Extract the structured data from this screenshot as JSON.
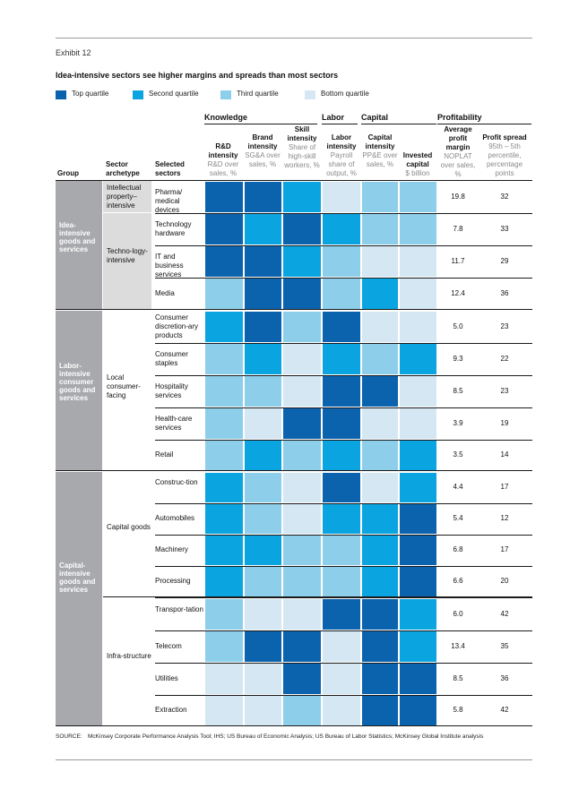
{
  "exhibit": "Exhibit 12",
  "title": "Idea-intensive sectors see higher margins and spreads than most sectors",
  "legend": [
    {
      "label": "Top quartile",
      "color": "#0b62ad"
    },
    {
      "label": "Second quartile",
      "color": "#0aa5e0"
    },
    {
      "label": "Third quartile",
      "color": "#8dcfea"
    },
    {
      "label": "Bottom quartile",
      "color": "#d4e7f2"
    }
  ],
  "column_groups": {
    "knowledge": "Knowledge",
    "labor": "Labor",
    "capital": "Capital",
    "profitability": "Profitability"
  },
  "left_headers": {
    "group": "Group",
    "archetype": "Sector archetype",
    "sectors": "Selected sectors"
  },
  "columns": [
    {
      "title": "R&D intensity",
      "sub": "R&D over sales, %"
    },
    {
      "title": "Brand intensity",
      "sub": "SG&A over sales, %"
    },
    {
      "title": "Skill intensity",
      "sub": "Share of high-skill workers, %"
    },
    {
      "title": "Labor intensity",
      "sub": "Payroll share of output, %"
    },
    {
      "title": "Capital intensity",
      "sub": "PP&E over sales, %"
    },
    {
      "title": "Invested capital",
      "sub": "$ billion"
    },
    {
      "title": "Average profit margin",
      "sub": "NOPLAT over sales, %"
    },
    {
      "title": "Profit spread",
      "sub": "95th – 5th percentile, percentage points"
    }
  ],
  "groups": [
    {
      "name": "Idea-intensive goods and services"
    },
    {
      "name": "Labor-intensive consumer goods and services"
    },
    {
      "name": "Capital-intensive goods and services"
    }
  ],
  "archetypes": [
    {
      "name": "Intellectual property–intensive"
    },
    {
      "name": "Techno-logy-intensive"
    },
    {
      "name": "Local consumer-facing"
    },
    {
      "name": "Capital goods"
    },
    {
      "name": "Infra-structure"
    }
  ],
  "source": {
    "label": "SOURCE:",
    "text": "McKinsey Corporate Performance Analysis Tool; IHS; US Bureau of Economic Analysis; US Bureau of Labor Statistics; McKinsey Global Institute analysis"
  },
  "chart_data": {
    "type": "heatmap",
    "title": "Idea-intensive sectors see higher margins and spreads than most sectors",
    "quartile_scale": {
      "1": "Top quartile",
      "2": "Second quartile",
      "3": "Third quartile",
      "4": "Bottom quartile"
    },
    "quartile_columns": [
      "R&D intensity",
      "Brand intensity",
      "Skill intensity",
      "Labor intensity",
      "Capital intensity",
      "Invested capital"
    ],
    "value_columns": [
      "Average profit margin",
      "Profit spread"
    ],
    "rows": [
      {
        "sector": "Pharma/ medical devices",
        "quartiles": [
          1,
          1,
          2,
          4,
          3,
          3
        ],
        "margin": "19.8",
        "spread": "32"
      },
      {
        "sector": "Technology hardware",
        "quartiles": [
          1,
          2,
          1,
          2,
          3,
          3
        ],
        "margin": "7.8",
        "spread": "33"
      },
      {
        "sector": "IT and business services",
        "quartiles": [
          1,
          1,
          2,
          3,
          4,
          4
        ],
        "margin": "11.7",
        "spread": "29"
      },
      {
        "sector": "Media",
        "quartiles": [
          3,
          1,
          1,
          3,
          2,
          4
        ],
        "margin": "12.4",
        "spread": "36"
      },
      {
        "sector": "Consumer discretion-ary products",
        "quartiles": [
          2,
          1,
          3,
          1,
          4,
          4
        ],
        "margin": "5.0",
        "spread": "23"
      },
      {
        "sector": "Consumer staples",
        "quartiles": [
          3,
          2,
          4,
          2,
          3,
          2
        ],
        "margin": "9.3",
        "spread": "22"
      },
      {
        "sector": "Hospitality services",
        "quartiles": [
          3,
          3,
          4,
          1,
          1,
          4
        ],
        "margin": "8.5",
        "spread": "23"
      },
      {
        "sector": "Health-care services",
        "quartiles": [
          3,
          4,
          1,
          1,
          4,
          4
        ],
        "margin": "3.9",
        "spread": "19"
      },
      {
        "sector": "Retail",
        "quartiles": [
          3,
          2,
          3,
          2,
          3,
          2
        ],
        "margin": "3.5",
        "spread": "14"
      },
      {
        "sector": "Construc-tion",
        "quartiles": [
          2,
          3,
          4,
          1,
          4,
          2
        ],
        "margin": "4.4",
        "spread": "17"
      },
      {
        "sector": "Automobiles",
        "quartiles": [
          2,
          3,
          4,
          2,
          2,
          1
        ],
        "margin": "5.4",
        "spread": "12"
      },
      {
        "sector": "Machinery",
        "quartiles": [
          2,
          2,
          3,
          3,
          2,
          1
        ],
        "margin": "6.8",
        "spread": "17"
      },
      {
        "sector": "Processing",
        "quartiles": [
          2,
          3,
          3,
          3,
          2,
          1
        ],
        "margin": "6.6",
        "spread": "20"
      },
      {
        "sector": "Transpor-tation",
        "quartiles": [
          3,
          4,
          4,
          1,
          1,
          2
        ],
        "margin": "6.0",
        "spread": "42"
      },
      {
        "sector": "Telecom",
        "quartiles": [
          3,
          1,
          1,
          4,
          1,
          2
        ],
        "margin": "13.4",
        "spread": "35"
      },
      {
        "sector": "Utilities",
        "quartiles": [
          4,
          4,
          1,
          4,
          1,
          1
        ],
        "margin": "8.5",
        "spread": "36"
      },
      {
        "sector": "Extraction",
        "quartiles": [
          4,
          4,
          3,
          4,
          1,
          1
        ],
        "margin": "5.8",
        "spread": "42"
      }
    ]
  }
}
